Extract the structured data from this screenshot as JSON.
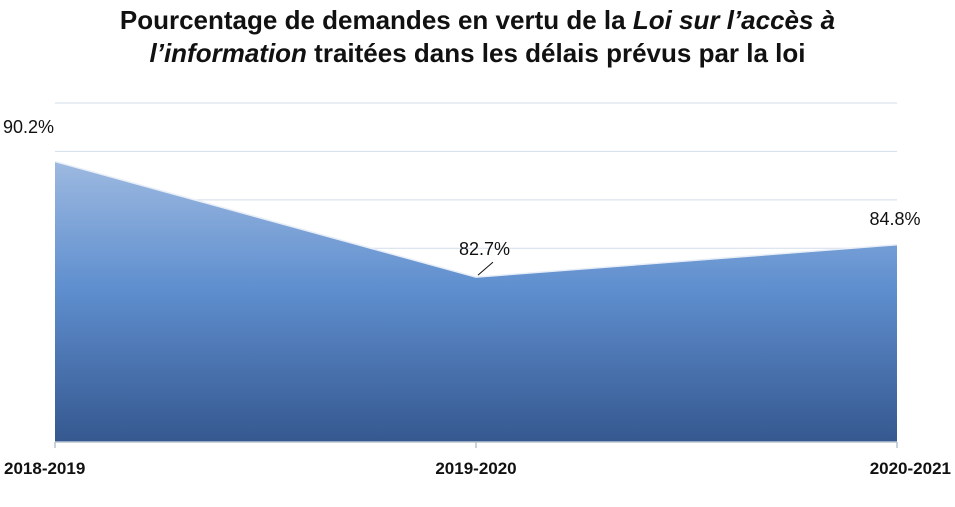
{
  "title": {
    "part1": "Pourcentage de demandes en vertu de la ",
    "italic1": "Loi sur l’accès à",
    "italic2": "l’information",
    "part2": " traitées dans les délais prévus par la loi"
  },
  "chart_data": {
    "type": "area",
    "categories": [
      "2018-2019",
      "2019-2020",
      "2020-2021"
    ],
    "values": [
      90.2,
      82.7,
      84.8
    ],
    "data_labels": [
      "90.2%",
      "82.7%",
      "84.8%"
    ],
    "ylim": [
      72,
      94
    ],
    "grid": true,
    "legend": "none",
    "colors": {
      "area_top": "#9db9e0",
      "area_mid": "#5f8fcf",
      "area_bottom": "#35588f",
      "gridline": "#d2dde9",
      "axis": "#b9c3cf"
    }
  }
}
